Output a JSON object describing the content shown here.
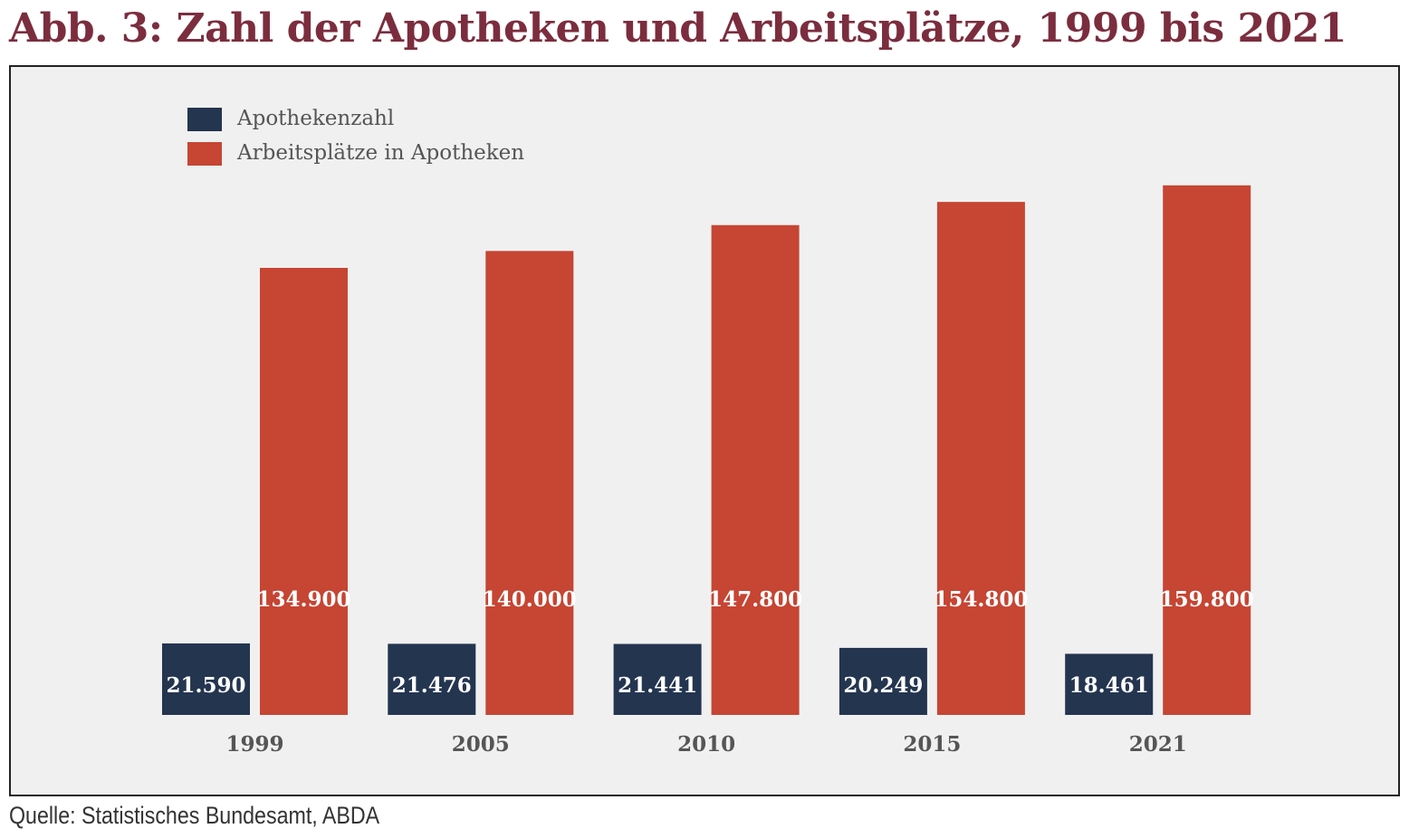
{
  "title": "Abb. 3: Zahl der Apotheken und Arbeitsplätze, 1999 bis 2021",
  "source": "Quelle: Statistisches Bundesamt, ABDA",
  "colors": {
    "title": "#7b2d3e",
    "apotheken": "#243550",
    "arbeitsplaetze": "#c64533",
    "panel": "#f0f0f0"
  },
  "chart_data": {
    "type": "bar",
    "title": "Abb. 3: Zahl der Apotheken und Arbeitsplätze, 1999 bis 2021",
    "categories": [
      "1999",
      "2005",
      "2010",
      "2015",
      "2021"
    ],
    "series": [
      {
        "name": "Apothekenzahl",
        "values": [
          21590,
          21476,
          21441,
          20249,
          18461
        ],
        "labels": [
          "21.590",
          "21.476",
          "21.441",
          "20.249",
          "18.461"
        ],
        "color": "#243550"
      },
      {
        "name": "Arbeitsplätze in Apotheken",
        "values": [
          134900,
          140000,
          147800,
          154800,
          159800
        ],
        "labels": [
          "134.900",
          "140.000",
          "147.800",
          "154.800",
          "159.800"
        ],
        "color": "#c64533"
      }
    ],
    "xlabel": "",
    "ylabel": "",
    "grid": false,
    "legend": "top-left",
    "notes": "Apothekenzahl and Arbeitsplätze bars are drawn on independent (unlabeled) scales"
  }
}
